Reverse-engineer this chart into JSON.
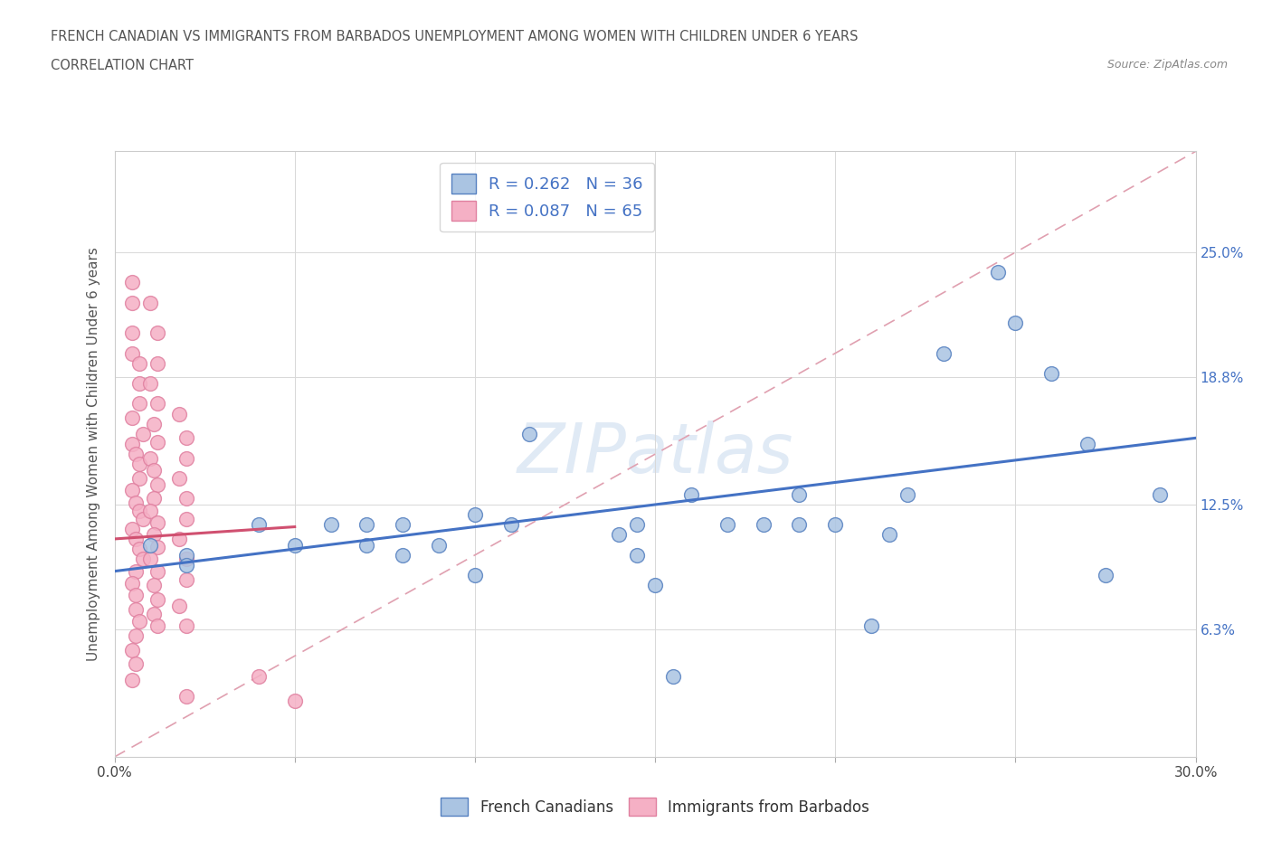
{
  "title_line1": "FRENCH CANADIAN VS IMMIGRANTS FROM BARBADOS UNEMPLOYMENT AMONG WOMEN WITH CHILDREN UNDER 6 YEARS",
  "title_line2": "CORRELATION CHART",
  "source": "Source: ZipAtlas.com",
  "ylabel": "Unemployment Among Women with Children Under 6 years",
  "xlim": [
    0.0,
    0.3
  ],
  "ylim": [
    0.0,
    0.3
  ],
  "xtick_positions": [
    0.0,
    0.05,
    0.1,
    0.15,
    0.2,
    0.25,
    0.3
  ],
  "xtick_labels": [
    "0.0%",
    "",
    "",
    "",
    "",
    "",
    "30.0%"
  ],
  "ytick_positions": [
    0.0,
    0.063,
    0.125,
    0.188,
    0.25
  ],
  "ytick_labels_right": [
    "",
    "6.3%",
    "12.5%",
    "18.8%",
    "25.0%"
  ],
  "blue_R": 0.262,
  "blue_N": 36,
  "pink_R": 0.087,
  "pink_N": 65,
  "blue_color": "#aac4e2",
  "pink_color": "#f5b0c5",
  "blue_edge_color": "#5580c0",
  "pink_edge_color": "#e080a0",
  "blue_line_color": "#4472C4",
  "pink_line_color": "#d05070",
  "ref_line_color": "#e0a0b0",
  "blue_line_intercept": 0.092,
  "blue_line_slope": 0.22,
  "pink_line_intercept": 0.108,
  "pink_line_slope": 0.12,
  "blue_scatter": [
    [
      0.01,
      0.105
    ],
    [
      0.02,
      0.1
    ],
    [
      0.02,
      0.095
    ],
    [
      0.04,
      0.115
    ],
    [
      0.05,
      0.105
    ],
    [
      0.06,
      0.115
    ],
    [
      0.07,
      0.105
    ],
    [
      0.07,
      0.115
    ],
    [
      0.08,
      0.1
    ],
    [
      0.08,
      0.115
    ],
    [
      0.09,
      0.105
    ],
    [
      0.1,
      0.12
    ],
    [
      0.1,
      0.09
    ],
    [
      0.11,
      0.115
    ],
    [
      0.115,
      0.16
    ],
    [
      0.14,
      0.11
    ],
    [
      0.145,
      0.1
    ],
    [
      0.145,
      0.115
    ],
    [
      0.15,
      0.085
    ],
    [
      0.16,
      0.13
    ],
    [
      0.17,
      0.115
    ],
    [
      0.18,
      0.115
    ],
    [
      0.19,
      0.115
    ],
    [
      0.19,
      0.13
    ],
    [
      0.2,
      0.115
    ],
    [
      0.21,
      0.065
    ],
    [
      0.215,
      0.11
    ],
    [
      0.22,
      0.13
    ],
    [
      0.23,
      0.2
    ],
    [
      0.245,
      0.24
    ],
    [
      0.25,
      0.215
    ],
    [
      0.26,
      0.19
    ],
    [
      0.27,
      0.155
    ],
    [
      0.275,
      0.09
    ],
    [
      0.29,
      0.13
    ],
    [
      0.155,
      0.04
    ]
  ],
  "pink_scatter": [
    [
      0.005,
      0.235
    ],
    [
      0.005,
      0.225
    ],
    [
      0.005,
      0.21
    ],
    [
      0.005,
      0.2
    ],
    [
      0.007,
      0.195
    ],
    [
      0.007,
      0.185
    ],
    [
      0.007,
      0.175
    ],
    [
      0.005,
      0.168
    ],
    [
      0.008,
      0.16
    ],
    [
      0.005,
      0.155
    ],
    [
      0.006,
      0.15
    ],
    [
      0.007,
      0.145
    ],
    [
      0.007,
      0.138
    ],
    [
      0.005,
      0.132
    ],
    [
      0.006,
      0.126
    ],
    [
      0.007,
      0.122
    ],
    [
      0.008,
      0.118
    ],
    [
      0.005,
      0.113
    ],
    [
      0.006,
      0.108
    ],
    [
      0.007,
      0.103
    ],
    [
      0.008,
      0.098
    ],
    [
      0.006,
      0.092
    ],
    [
      0.005,
      0.086
    ],
    [
      0.006,
      0.08
    ],
    [
      0.006,
      0.073
    ],
    [
      0.007,
      0.067
    ],
    [
      0.006,
      0.06
    ],
    [
      0.005,
      0.053
    ],
    [
      0.006,
      0.046
    ],
    [
      0.005,
      0.038
    ],
    [
      0.01,
      0.225
    ],
    [
      0.012,
      0.21
    ],
    [
      0.012,
      0.195
    ],
    [
      0.01,
      0.185
    ],
    [
      0.012,
      0.175
    ],
    [
      0.011,
      0.165
    ],
    [
      0.012,
      0.156
    ],
    [
      0.01,
      0.148
    ],
    [
      0.011,
      0.142
    ],
    [
      0.012,
      0.135
    ],
    [
      0.011,
      0.128
    ],
    [
      0.01,
      0.122
    ],
    [
      0.012,
      0.116
    ],
    [
      0.011,
      0.11
    ],
    [
      0.012,
      0.104
    ],
    [
      0.01,
      0.098
    ],
    [
      0.012,
      0.092
    ],
    [
      0.011,
      0.085
    ],
    [
      0.012,
      0.078
    ],
    [
      0.011,
      0.071
    ],
    [
      0.012,
      0.065
    ],
    [
      0.018,
      0.17
    ],
    [
      0.02,
      0.158
    ],
    [
      0.02,
      0.148
    ],
    [
      0.018,
      0.138
    ],
    [
      0.02,
      0.128
    ],
    [
      0.02,
      0.118
    ],
    [
      0.018,
      0.108
    ],
    [
      0.02,
      0.098
    ],
    [
      0.02,
      0.088
    ],
    [
      0.018,
      0.075
    ],
    [
      0.02,
      0.065
    ],
    [
      0.02,
      0.03
    ],
    [
      0.04,
      0.04
    ],
    [
      0.05,
      0.028
    ]
  ],
  "background_color": "#ffffff",
  "grid_color": "#d8d8d8",
  "watermark_text": "ZIPatlas",
  "watermark_color": "#ccdcef"
}
